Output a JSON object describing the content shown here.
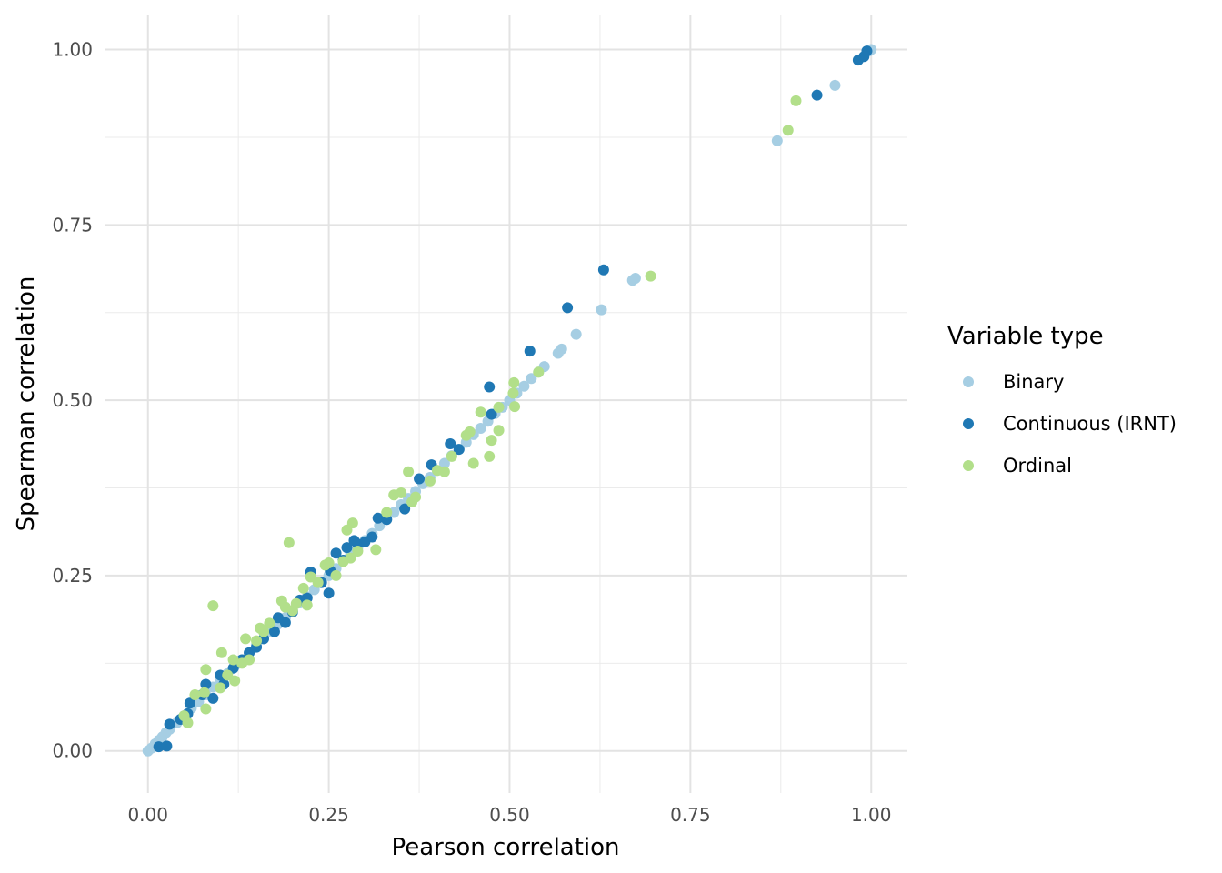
{
  "chart_data": {
    "type": "scatter",
    "xlabel": "Pearson correlation",
    "ylabel": "Spearman correlation",
    "xlim": [
      -0.06,
      1.05
    ],
    "ylim": [
      -0.06,
      1.05
    ],
    "xticks": [
      0.0,
      0.25,
      0.5,
      0.75,
      1.0
    ],
    "yticks": [
      0.0,
      0.25,
      0.5,
      0.75,
      1.0
    ],
    "xtick_labels": [
      "0.00",
      "0.25",
      "0.50",
      "0.75",
      "1.00"
    ],
    "ytick_labels": [
      "0.00",
      "0.25",
      "0.50",
      "0.75",
      "1.00"
    ],
    "grid": true,
    "legend": {
      "title": "Variable type",
      "position": "right"
    },
    "series": [
      {
        "name": "Binary",
        "color": "#a6cee3",
        "points": [
          [
            0.0,
            0.0
          ],
          [
            0.005,
            0.004
          ],
          [
            0.01,
            0.01
          ],
          [
            0.015,
            0.015
          ],
          [
            0.02,
            0.02
          ],
          [
            0.025,
            0.026
          ],
          [
            0.03,
            0.031
          ],
          [
            0.04,
            0.04
          ],
          [
            0.05,
            0.05
          ],
          [
            0.06,
            0.061
          ],
          [
            0.07,
            0.07
          ],
          [
            0.08,
            0.08
          ],
          [
            0.09,
            0.091
          ],
          [
            0.1,
            0.1
          ],
          [
            0.11,
            0.11
          ],
          [
            0.12,
            0.121
          ],
          [
            0.13,
            0.13
          ],
          [
            0.14,
            0.14
          ],
          [
            0.15,
            0.151
          ],
          [
            0.16,
            0.16
          ],
          [
            0.17,
            0.17
          ],
          [
            0.18,
            0.181
          ],
          [
            0.19,
            0.19
          ],
          [
            0.2,
            0.2
          ],
          [
            0.21,
            0.211
          ],
          [
            0.22,
            0.22
          ],
          [
            0.23,
            0.23
          ],
          [
            0.24,
            0.241
          ],
          [
            0.25,
            0.25
          ],
          [
            0.26,
            0.26
          ],
          [
            0.27,
            0.271
          ],
          [
            0.28,
            0.28
          ],
          [
            0.29,
            0.29
          ],
          [
            0.3,
            0.3
          ],
          [
            0.31,
            0.31
          ],
          [
            0.32,
            0.321
          ],
          [
            0.33,
            0.33
          ],
          [
            0.34,
            0.34
          ],
          [
            0.35,
            0.351
          ],
          [
            0.36,
            0.36
          ],
          [
            0.37,
            0.37
          ],
          [
            0.38,
            0.381
          ],
          [
            0.39,
            0.39
          ],
          [
            0.4,
            0.4
          ],
          [
            0.41,
            0.41
          ],
          [
            0.42,
            0.421
          ],
          [
            0.43,
            0.43
          ],
          [
            0.44,
            0.44
          ],
          [
            0.45,
            0.451
          ],
          [
            0.46,
            0.46
          ],
          [
            0.47,
            0.47
          ],
          [
            0.48,
            0.481
          ],
          [
            0.49,
            0.49
          ],
          [
            0.5,
            0.5
          ],
          [
            0.51,
            0.51
          ],
          [
            0.52,
            0.52
          ],
          [
            0.53,
            0.531
          ],
          [
            0.54,
            0.54
          ],
          [
            0.548,
            0.548
          ],
          [
            0.567,
            0.567
          ],
          [
            0.572,
            0.573
          ],
          [
            0.592,
            0.594
          ],
          [
            0.627,
            0.629
          ],
          [
            0.67,
            0.671
          ],
          [
            0.674,
            0.674
          ],
          [
            0.87,
            0.87
          ],
          [
            0.95,
            0.949
          ],
          [
            0.997,
            0.998
          ],
          [
            1.0,
            1.0
          ]
        ]
      },
      {
        "name": "Continuous (IRNT)",
        "color": "#1f78b4",
        "points": [
          [
            0.015,
            0.006
          ],
          [
            0.026,
            0.007
          ],
          [
            0.03,
            0.038
          ],
          [
            0.045,
            0.045
          ],
          [
            0.055,
            0.053
          ],
          [
            0.058,
            0.068
          ],
          [
            0.075,
            0.08
          ],
          [
            0.08,
            0.095
          ],
          [
            0.09,
            0.075
          ],
          [
            0.1,
            0.108
          ],
          [
            0.105,
            0.095
          ],
          [
            0.118,
            0.118
          ],
          [
            0.13,
            0.13
          ],
          [
            0.14,
            0.14
          ],
          [
            0.15,
            0.148
          ],
          [
            0.16,
            0.16
          ],
          [
            0.175,
            0.17
          ],
          [
            0.18,
            0.19
          ],
          [
            0.19,
            0.183
          ],
          [
            0.2,
            0.198
          ],
          [
            0.21,
            0.215
          ],
          [
            0.22,
            0.218
          ],
          [
            0.225,
            0.255
          ],
          [
            0.24,
            0.24
          ],
          [
            0.25,
            0.225
          ],
          [
            0.252,
            0.257
          ],
          [
            0.26,
            0.282
          ],
          [
            0.27,
            0.272
          ],
          [
            0.275,
            0.29
          ],
          [
            0.285,
            0.3
          ],
          [
            0.29,
            0.295
          ],
          [
            0.3,
            0.298
          ],
          [
            0.31,
            0.305
          ],
          [
            0.318,
            0.332
          ],
          [
            0.33,
            0.33
          ],
          [
            0.355,
            0.345
          ],
          [
            0.375,
            0.388
          ],
          [
            0.392,
            0.408
          ],
          [
            0.418,
            0.438
          ],
          [
            0.43,
            0.43
          ],
          [
            0.472,
            0.519
          ],
          [
            0.475,
            0.48
          ],
          [
            0.528,
            0.57
          ],
          [
            0.58,
            0.632
          ],
          [
            0.63,
            0.686
          ],
          [
            0.925,
            0.935
          ],
          [
            0.982,
            0.985
          ],
          [
            0.99,
            0.99
          ],
          [
            0.994,
            0.998
          ]
        ]
      },
      {
        "name": "Ordinal",
        "color": "#b2df8a",
        "points": [
          [
            0.08,
            0.06
          ],
          [
            0.09,
            0.207
          ],
          [
            0.102,
            0.14
          ],
          [
            0.08,
            0.116
          ],
          [
            0.12,
            0.1
          ],
          [
            0.135,
            0.16
          ],
          [
            0.05,
            0.05
          ],
          [
            0.055,
            0.04
          ],
          [
            0.065,
            0.08
          ],
          [
            0.078,
            0.083
          ],
          [
            0.1,
            0.09
          ],
          [
            0.11,
            0.108
          ],
          [
            0.118,
            0.13
          ],
          [
            0.13,
            0.125
          ],
          [
            0.14,
            0.13
          ],
          [
            0.15,
            0.157
          ],
          [
            0.155,
            0.175
          ],
          [
            0.16,
            0.17
          ],
          [
            0.168,
            0.182
          ],
          [
            0.185,
            0.214
          ],
          [
            0.19,
            0.205
          ],
          [
            0.195,
            0.297
          ],
          [
            0.2,
            0.2
          ],
          [
            0.205,
            0.21
          ],
          [
            0.215,
            0.232
          ],
          [
            0.22,
            0.208
          ],
          [
            0.225,
            0.248
          ],
          [
            0.235,
            0.24
          ],
          [
            0.245,
            0.265
          ],
          [
            0.25,
            0.268
          ],
          [
            0.26,
            0.25
          ],
          [
            0.27,
            0.27
          ],
          [
            0.275,
            0.315
          ],
          [
            0.28,
            0.275
          ],
          [
            0.283,
            0.325
          ],
          [
            0.29,
            0.285
          ],
          [
            0.315,
            0.287
          ],
          [
            0.33,
            0.34
          ],
          [
            0.34,
            0.365
          ],
          [
            0.35,
            0.368
          ],
          [
            0.36,
            0.398
          ],
          [
            0.365,
            0.355
          ],
          [
            0.37,
            0.362
          ],
          [
            0.39,
            0.385
          ],
          [
            0.4,
            0.4
          ],
          [
            0.41,
            0.398
          ],
          [
            0.42,
            0.42
          ],
          [
            0.44,
            0.45
          ],
          [
            0.445,
            0.455
          ],
          [
            0.45,
            0.41
          ],
          [
            0.46,
            0.483
          ],
          [
            0.472,
            0.42
          ],
          [
            0.475,
            0.443
          ],
          [
            0.485,
            0.457
          ],
          [
            0.485,
            0.49
          ],
          [
            0.505,
            0.51
          ],
          [
            0.506,
            0.525
          ],
          [
            0.507,
            0.491
          ],
          [
            0.54,
            0.54
          ],
          [
            0.695,
            0.677
          ],
          [
            0.885,
            0.885
          ],
          [
            0.896,
            0.927
          ]
        ]
      }
    ]
  }
}
